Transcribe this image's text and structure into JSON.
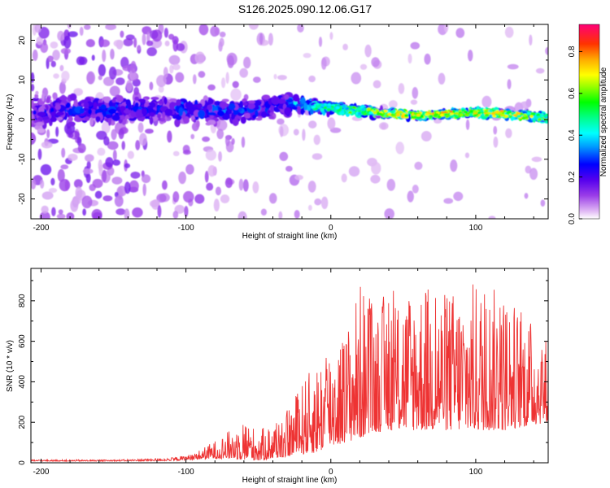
{
  "figure_title": "S126.2025.090.12.06.G17",
  "colorbar": {
    "label": "Normalized spectral amplitude",
    "ticks": [
      0.0,
      0.2,
      0.4,
      0.6,
      0.8
    ],
    "tick_labels": [
      "0.0",
      "0.2",
      "0.4",
      "0.6",
      "0.8"
    ],
    "range": [
      0,
      0.93
    ]
  },
  "chart_data": [
    {
      "type": "heatmap",
      "title": "",
      "xlabel": "Height of straight line (km)",
      "ylabel": "Frequency (Hz)",
      "xlim": [
        -207,
        150
      ],
      "ylim": [
        -25,
        24
      ],
      "xticks": [
        -200,
        -100,
        0,
        100
      ],
      "xtick_labels": [
        "-200",
        "-100",
        "0",
        "100"
      ],
      "yticks": [
        -20,
        -10,
        0,
        10,
        20
      ],
      "ytick_labels": [
        "-20",
        "-10",
        "0",
        "10",
        "20"
      ],
      "ridge": {
        "x": [
          -207,
          -180,
          -150,
          -120,
          -100,
          -80,
          -60,
          -40,
          -25,
          -10,
          0,
          20,
          40,
          60,
          80,
          100,
          120,
          150
        ],
        "freq": [
          2.0,
          2.2,
          2.5,
          2.3,
          2.5,
          2.2,
          2.0,
          3.2,
          3.8,
          3.2,
          3.0,
          2.2,
          1.6,
          1.0,
          1.4,
          1.8,
          1.4,
          0.5
        ],
        "peak_amplitude": [
          0.25,
          0.3,
          0.3,
          0.3,
          0.35,
          0.35,
          0.35,
          0.3,
          0.45,
          0.55,
          0.55,
          0.65,
          0.72,
          0.8,
          0.82,
          0.8,
          0.78,
          0.65
        ],
        "spread_hz": [
          5.5,
          5.0,
          4.5,
          4.0,
          3.8,
          3.5,
          3.5,
          3.5,
          2.8,
          2.0,
          1.8,
          1.5,
          1.2,
          1.0,
          1.0,
          1.0,
          1.0,
          1.0
        ]
      }
    },
    {
      "type": "line",
      "title": "",
      "xlabel": "Height of straight line (km)",
      "ylabel": "SNR (10 * v/v)",
      "xlim": [
        -207,
        150
      ],
      "ylim": [
        0,
        960
      ],
      "xticks": [
        -200,
        -100,
        0,
        100
      ],
      "xtick_labels": [
        "-200",
        "-100",
        "0",
        "100"
      ],
      "yticks": [
        0,
        200,
        400,
        600,
        800
      ],
      "ytick_labels": [
        "0",
        "200",
        "400",
        "600",
        "800"
      ],
      "series": [
        {
          "color": "#ee3333",
          "envelope": {
            "x": [
              -207,
              -150,
              -110,
              -95,
              -80,
              -70,
              -60,
              -50,
              -40,
              -30,
              -20,
              -10,
              0,
              10,
              20,
              30,
              40,
              60,
              80,
              100,
              120,
              150
            ],
            "y_low": [
              8,
              8,
              10,
              15,
              20,
              20,
              15,
              10,
              20,
              30,
              40,
              50,
              80,
              100,
              120,
              150,
              160,
              160,
              160,
              160,
              160,
              200
            ],
            "y_high": [
              15,
              15,
              25,
              45,
              110,
              160,
              220,
              160,
              200,
              260,
              400,
              500,
              620,
              650,
              900,
              800,
              850,
              900,
              850,
              900,
              850,
              620
            ]
          }
        }
      ]
    }
  ]
}
